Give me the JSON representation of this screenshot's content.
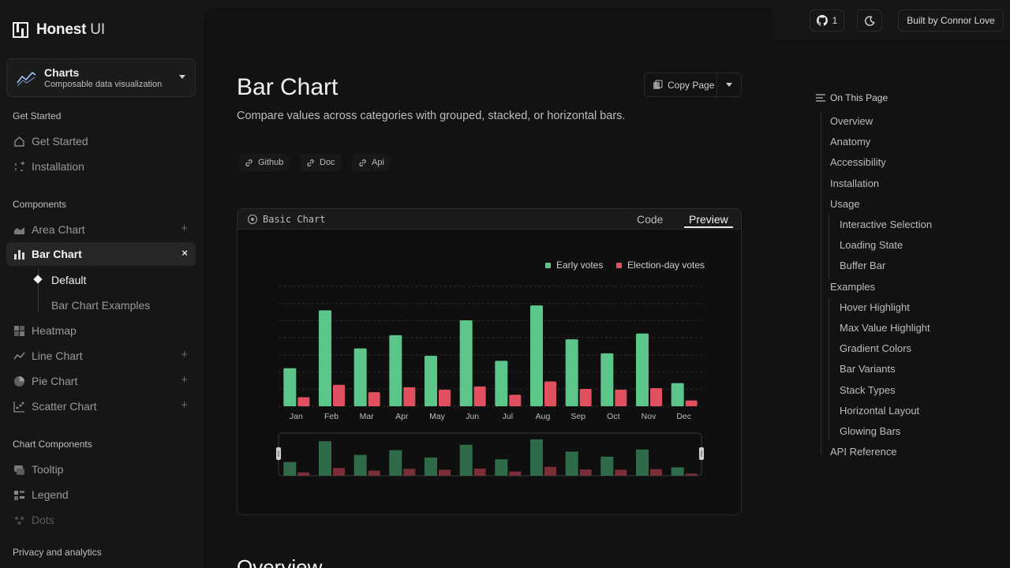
{
  "brand": {
    "name_bold": "Honest",
    "name_rest": "UI"
  },
  "selector": {
    "title": "Charts",
    "subtitle": "Composable data visualization"
  },
  "sidebar": {
    "get_started_label": "Get Started",
    "get_started_items": [
      {
        "label": "Get Started",
        "icon": "home-icon"
      },
      {
        "label": "Installation",
        "icon": "sparkle-icon"
      }
    ],
    "components_label": "Components",
    "components": [
      {
        "label": "Area Chart",
        "icon": "area-chart-icon",
        "action": "+"
      },
      {
        "label": "Bar Chart",
        "icon": "bar-chart-icon",
        "action": "×",
        "active": true
      },
      {
        "label": "Heatmap",
        "icon": "heatmap-icon"
      },
      {
        "label": "Line Chart",
        "icon": "line-chart-icon",
        "action": "+"
      },
      {
        "label": "Pie Chart",
        "icon": "pie-chart-icon",
        "action": "+"
      },
      {
        "label": "Scatter Chart",
        "icon": "scatter-chart-icon",
        "action": "+"
      }
    ],
    "bar_chart_children": [
      "Default",
      "Bar Chart Examples"
    ],
    "chart_components_label": "Chart Components",
    "chart_components": [
      {
        "label": "Tooltip",
        "icon": "tooltip-icon"
      },
      {
        "label": "Legend",
        "icon": "legend-icon"
      },
      {
        "label": "Dots",
        "icon": "dots-icon"
      }
    ],
    "privacy_label": "Privacy and analytics"
  },
  "topbar": {
    "github_count": "1",
    "built_by": "Built by Connor Love"
  },
  "page": {
    "title": "Bar Chart",
    "description": "Compare values across categories with grouped, stacked, or horizontal bars.",
    "copy_label": "Copy Page",
    "chips": [
      "Github",
      "Doc",
      "Api"
    ],
    "next_heading": "Overview"
  },
  "demo": {
    "title": "Basic Chart",
    "tab_code": "Code",
    "tab_preview": "Preview"
  },
  "chart_data": {
    "type": "bar",
    "categories": [
      "Jan",
      "Feb",
      "Mar",
      "Apr",
      "May",
      "Jun",
      "Jul",
      "Aug",
      "Sep",
      "Oct",
      "Nov",
      "Dec"
    ],
    "series": [
      {
        "name": "Early votes",
        "values": [
          46,
          116,
          70,
          86,
          61,
          104,
          55,
          122,
          81,
          64,
          88,
          28
        ],
        "color": "#5cc58a"
      },
      {
        "name": "Election-day votes",
        "values": [
          11,
          26,
          17,
          23,
          20,
          24,
          14,
          30,
          21,
          20,
          22,
          7
        ],
        "color": "#e0505f"
      }
    ],
    "ylim": [
      0,
      145
    ],
    "grid": true,
    "legend": "top-right"
  },
  "toc": {
    "heading": "On This Page",
    "items": [
      {
        "label": "Overview",
        "level": 0
      },
      {
        "label": "Anatomy",
        "level": 0
      },
      {
        "label": "Accessibility",
        "level": 0
      },
      {
        "label": "Installation",
        "level": 0
      },
      {
        "label": "Usage",
        "level": 0
      },
      {
        "label": "Interactive Selection",
        "level": 1
      },
      {
        "label": "Loading State",
        "level": 1
      },
      {
        "label": "Buffer Bar",
        "level": 1
      },
      {
        "label": "Examples",
        "level": 0
      },
      {
        "label": "Hover Highlight",
        "level": 1
      },
      {
        "label": "Max Value Highlight",
        "level": 1
      },
      {
        "label": "Gradient Colors",
        "level": 1
      },
      {
        "label": "Bar Variants",
        "level": 1
      },
      {
        "label": "Stack Types",
        "level": 1
      },
      {
        "label": "Horizontal Layout",
        "level": 1
      },
      {
        "label": "Glowing Bars",
        "level": 1
      },
      {
        "label": "API Reference",
        "level": 0
      }
    ]
  }
}
